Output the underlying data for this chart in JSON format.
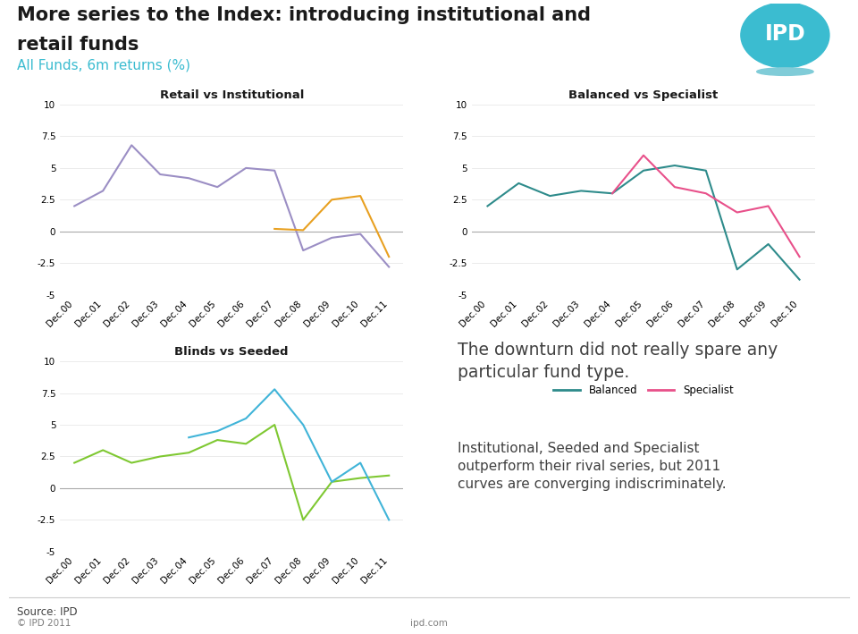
{
  "title_line1": "More series to the Index: introducing institutional and",
  "title_line2": "retail funds",
  "subtitle": "All Funds, 6m returns (%)",
  "title_color": "#1a1a1a",
  "subtitle_color": "#3bbcd0",
  "bg_color": "#ffffff",
  "chart1_title": "Retail vs Institutional",
  "chart1_xlabels": [
    "Dec.00",
    "Dec.01",
    "Dec.02",
    "Dec.03",
    "Dec.04",
    "Dec.05",
    "Dec.06",
    "Dec.07",
    "Dec.08",
    "Dec.09",
    "Dec.10",
    "Dec.11"
  ],
  "chart1_retail": [
    2.0,
    3.2,
    6.8,
    4.5,
    4.2,
    3.5,
    5.0,
    4.8,
    -1.5,
    -0.5,
    -0.2,
    -2.8
  ],
  "chart1_institutional": [
    null,
    null,
    null,
    null,
    null,
    null,
    null,
    0.2,
    0.1,
    2.5,
    2.8,
    -2.0
  ],
  "chart1_retail_color": "#9b8ec4",
  "chart1_institutional_color": "#e8a020",
  "chart1_ylim": [
    -5,
    10
  ],
  "chart1_yticks": [
    -5,
    -2.5,
    0,
    2.5,
    5,
    7.5,
    10
  ],
  "chart2_title": "Balanced vs Specialist",
  "chart2_xlabels": [
    "Dec.00",
    "Dec.01",
    "Dec.02",
    "Dec.03",
    "Dec.04",
    "Dec.05",
    "Dec.06",
    "Dec.07",
    "Dec.08",
    "Dec.09",
    "Dec.10"
  ],
  "chart2_balanced": [
    2.0,
    3.8,
    2.8,
    3.2,
    3.0,
    4.8,
    5.2,
    4.8,
    -3.0,
    -1.0,
    -3.8
  ],
  "chart2_specialist": [
    null,
    null,
    null,
    null,
    3.0,
    6.0,
    3.5,
    3.0,
    1.5,
    2.0,
    -2.0
  ],
  "chart2_balanced_color": "#2e8b8b",
  "chart2_specialist_color": "#e8508a",
  "chart2_ylim": [
    -5,
    10
  ],
  "chart2_yticks": [
    -5,
    -2.5,
    0,
    2.5,
    5,
    7.5,
    10
  ],
  "chart3_title": "Blinds vs Seeded",
  "chart3_xlabels": [
    "Dec.00",
    "Dec.01",
    "Dec.02",
    "Dec.03",
    "Dec.04",
    "Dec.05",
    "Dec.06",
    "Dec.07",
    "Dec.08",
    "Dec.09",
    "Dec.10",
    "Dec.11"
  ],
  "chart3_blinds": [
    2.0,
    3.0,
    2.0,
    2.5,
    2.8,
    3.8,
    3.5,
    5.0,
    -2.5,
    0.5,
    0.8,
    1.0
  ],
  "chart3_seeded": [
    null,
    null,
    null,
    null,
    4.0,
    4.5,
    5.5,
    7.8,
    5.0,
    0.5,
    2.0,
    -2.5
  ],
  "chart3_blinds_color": "#7fc832",
  "chart3_seeded_color": "#40b4d8",
  "chart3_ylim": [
    -5,
    10
  ],
  "chart3_yticks": [
    -5,
    -2.5,
    0,
    2.5,
    5,
    7.5,
    10
  ],
  "text1": "The downturn did not really spare any\nparticular fund type.",
  "text2": "Institutional, Seeded and Specialist\noutperform their rival series, but 2011\ncurves are converging indiscriminately.",
  "text_color": "#404040",
  "source_text": "Source: IPD",
  "footer_left": "© IPD 2011",
  "footer_center": "ipd.com",
  "ipd_logo_color": "#3bbcd0",
  "ipd_logo_text": "IPD"
}
